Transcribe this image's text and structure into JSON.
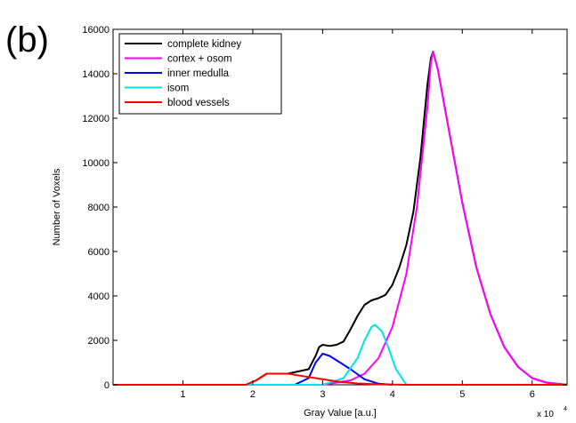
{
  "panel_label": "(b)",
  "chart_data": {
    "type": "line",
    "title": "",
    "xlabel": "Gray Value [a.u.]",
    "ylabel": "Number of Voxels",
    "x_exponent_label": "x 10",
    "x_exponent_power": "4",
    "xlim": [
      0,
      6.5
    ],
    "ylim": [
      0,
      16000
    ],
    "xticks": [
      "1",
      "2",
      "3",
      "4",
      "5",
      "6"
    ],
    "xtick_values": [
      1,
      2,
      3,
      4,
      5,
      6
    ],
    "yticks": [
      "0",
      "2000",
      "4000",
      "6000",
      "8000",
      "10000",
      "12000",
      "14000",
      "16000"
    ],
    "ytick_values": [
      0,
      2000,
      4000,
      6000,
      8000,
      10000,
      12000,
      14000,
      16000
    ],
    "grid": false,
    "legend_position": "top-left",
    "series": [
      {
        "name": "complete kidney",
        "color": "#000000",
        "x": [
          0,
          1.9,
          2.05,
          2.2,
          2.5,
          2.8,
          2.9,
          2.95,
          3.0,
          3.1,
          3.2,
          3.3,
          3.4,
          3.5,
          3.6,
          3.7,
          3.8,
          3.9,
          4.0,
          4.1,
          4.2,
          4.3,
          4.4,
          4.5,
          4.55,
          4.58,
          4.65,
          4.8,
          5.0,
          5.2,
          5.4,
          5.6,
          5.8,
          6.0,
          6.2,
          6.5
        ],
        "y": [
          0,
          0,
          200,
          500,
          500,
          700,
          1300,
          1700,
          1800,
          1750,
          1800,
          1950,
          2500,
          3100,
          3600,
          3800,
          3900,
          4050,
          4500,
          5300,
          6300,
          7800,
          10200,
          13500,
          14700,
          15000,
          14200,
          11600,
          8200,
          5300,
          3200,
          1700,
          800,
          300,
          100,
          0
        ]
      },
      {
        "name": "cortex + osom",
        "color": "#ff00ff",
        "x": [
          0,
          3.0,
          3.4,
          3.6,
          3.8,
          4.0,
          4.2,
          4.35,
          4.5,
          4.55,
          4.58,
          4.65,
          4.8,
          5.0,
          5.2,
          5.4,
          5.6,
          5.8,
          6.0,
          6.2,
          6.5
        ],
        "y": [
          0,
          0,
          200,
          500,
          1200,
          2600,
          5000,
          8000,
          12500,
          14500,
          15000,
          14200,
          11600,
          8200,
          5300,
          3200,
          1700,
          800,
          300,
          100,
          0
        ]
      },
      {
        "name": "inner medulla",
        "color": "#0000ff",
        "x": [
          0,
          2.6,
          2.8,
          2.9,
          3.0,
          3.1,
          3.2,
          3.4,
          3.6,
          3.8,
          4.0
        ],
        "y": [
          0,
          0,
          300,
          1000,
          1400,
          1300,
          1100,
          700,
          250,
          50,
          0
        ]
      },
      {
        "name": "isom",
        "color": "#00e5e5",
        "x": [
          0,
          3.0,
          3.3,
          3.5,
          3.6,
          3.7,
          3.75,
          3.85,
          3.95,
          4.05,
          4.2,
          6.5
        ],
        "y": [
          0,
          0,
          300,
          1200,
          2000,
          2600,
          2700,
          2400,
          1600,
          700,
          0,
          0
        ]
      },
      {
        "name": "blood vessels",
        "color": "#ff0000",
        "x": [
          0,
          1.9,
          2.05,
          2.2,
          2.5,
          2.8,
          3.0,
          3.2,
          3.5,
          3.8,
          4.2,
          6.5
        ],
        "y": [
          0,
          0,
          200,
          500,
          500,
          350,
          250,
          150,
          60,
          20,
          0,
          0
        ]
      }
    ]
  }
}
